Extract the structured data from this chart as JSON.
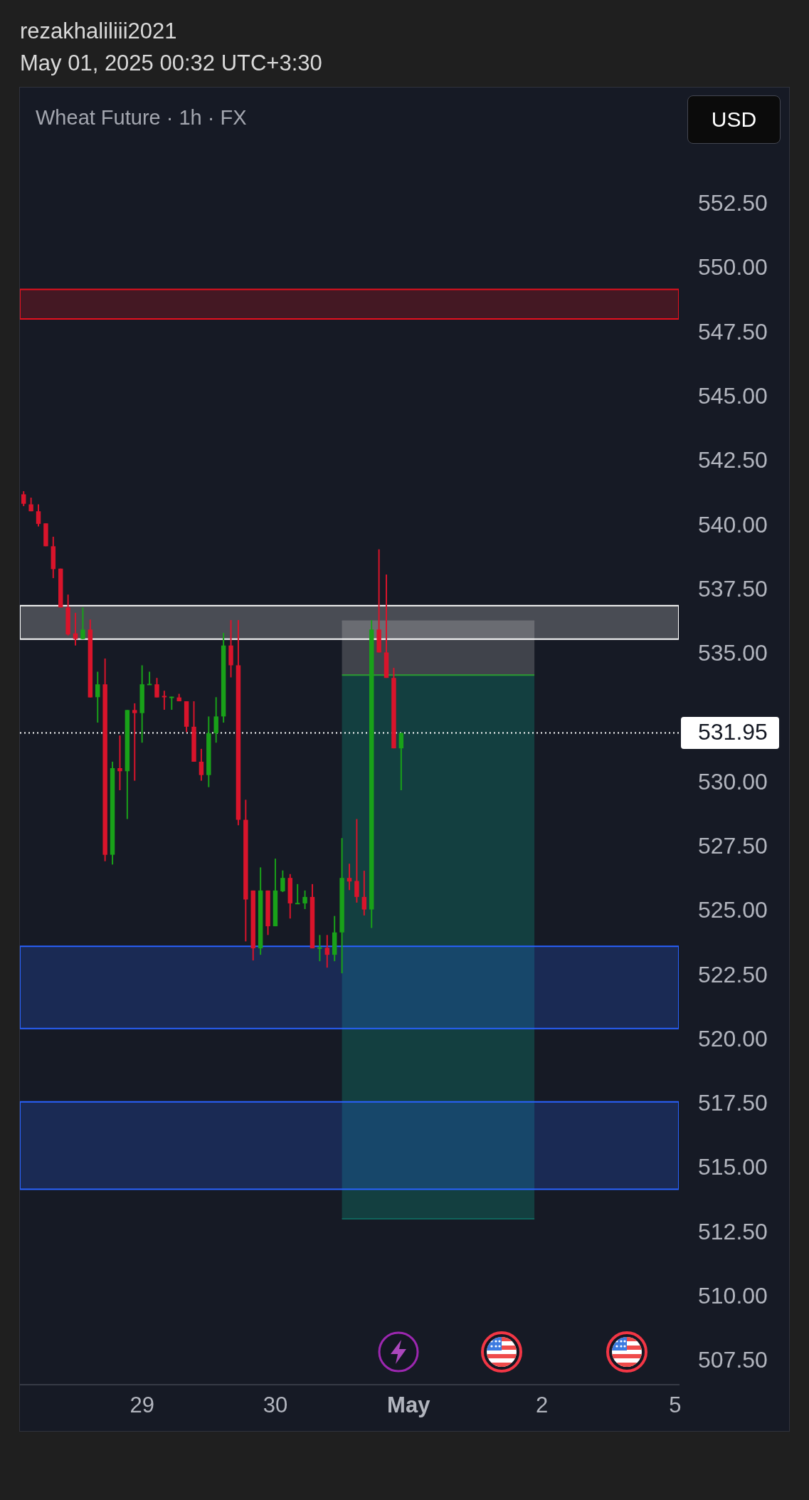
{
  "chart_data": {
    "type": "candlestick",
    "title": "Wheat Future · 1h · FX",
    "categories": [
      null,
      null,
      null,
      null,
      null,
      null,
      null,
      null,
      null,
      null,
      null,
      null,
      null,
      null,
      null,
      null,
      "29",
      null,
      null,
      null,
      null,
      null,
      null,
      null,
      null,
      null,
      null,
      null,
      null,
      null,
      null,
      null,
      null,
      null,
      "30",
      null,
      null,
      null,
      null,
      null,
      null,
      null,
      null,
      null,
      null,
      null,
      null,
      null,
      null,
      null,
      null,
      null,
      "May",
      null,
      null,
      null,
      null,
      null,
      null,
      null,
      null,
      null,
      null,
      null,
      null,
      null,
      null,
      null,
      null,
      null,
      "2",
      null,
      null,
      null,
      null,
      null,
      null,
      null,
      null,
      null,
      null,
      null,
      null,
      null,
      null,
      null,
      null,
      null,
      "5"
    ],
    "ohlc": [
      [
        541.23,
        541.35,
        540.77,
        540.86
      ],
      [
        540.84,
        541.1,
        540.57,
        540.57
      ],
      [
        540.57,
        540.84,
        539.98,
        540.08
      ],
      [
        540.1,
        540.1,
        539.21,
        539.21
      ],
      [
        539.21,
        539.58,
        537.97,
        538.32
      ],
      [
        538.34,
        538.34,
        536.83,
        536.83
      ],
      [
        536.83,
        537.33,
        535.74,
        535.78
      ],
      [
        535.82,
        536.62,
        535.35,
        535.6
      ],
      [
        535.6,
        536.83,
        535.6,
        535.97
      ],
      [
        535.97,
        536.36,
        533.33,
        533.33
      ],
      [
        533.34,
        534.33,
        532.35,
        533.84
      ],
      [
        533.84,
        534.84,
        526.96,
        527.21
      ],
      [
        527.21,
        530.83,
        526.83,
        530.58
      ],
      [
        530.58,
        531.85,
        529.72,
        530.46
      ],
      [
        530.46,
        532.84,
        528.6,
        532.84
      ],
      [
        532.84,
        533.1,
        530.09,
        532.72
      ],
      [
        532.72,
        534.58,
        531.57,
        533.84
      ],
      [
        533.84,
        534.33,
        533.84,
        533.86
      ],
      [
        533.84,
        534.09,
        533.33,
        533.33
      ],
      [
        533.39,
        533.59,
        532.85,
        533.35
      ],
      [
        533.34,
        533.36,
        532.85,
        533.36
      ],
      [
        533.33,
        533.47,
        533.18,
        533.18
      ],
      [
        533.18,
        533.18,
        531.98,
        532.19
      ],
      [
        532.19,
        533.18,
        530.83,
        530.83
      ],
      [
        530.83,
        531.33,
        530.09,
        530.31
      ],
      [
        530.31,
        532.59,
        529.84,
        531.94
      ],
      [
        531.94,
        533.34,
        531.57,
        532.59
      ],
      [
        532.59,
        535.84,
        532.35,
        535.35
      ],
      [
        535.35,
        536.34,
        534.11,
        534.58
      ],
      [
        534.58,
        536.34,
        528.36,
        528.57
      ],
      [
        528.57,
        529.35,
        523.84,
        525.47
      ],
      [
        525.82,
        525.82,
        523.1,
        523.57
      ],
      [
        523.57,
        526.72,
        523.32,
        525.82
      ],
      [
        525.82,
        525.82,
        524.09,
        524.43
      ],
      [
        524.43,
        527.06,
        524.43,
        525.82
      ],
      [
        525.79,
        526.6,
        525.76,
        526.31
      ],
      [
        526.31,
        526.46,
        524.73,
        525.32
      ],
      [
        525.32,
        526.07,
        525.32,
        525.34
      ],
      [
        525.32,
        525.82,
        525.1,
        525.57
      ],
      [
        525.57,
        526.07,
        523.57,
        523.57
      ],
      [
        523.59,
        524.09,
        523.07,
        523.61
      ],
      [
        523.59,
        524.09,
        522.82,
        523.32
      ],
      [
        523.32,
        524.83,
        523.07,
        524.19
      ],
      [
        524.19,
        527.86,
        522.6,
        526.31
      ],
      [
        526.31,
        526.86,
        525.84,
        526.17
      ],
      [
        526.19,
        528.6,
        525.35,
        525.57
      ],
      [
        525.57,
        526.59,
        524.85,
        525.08
      ],
      [
        525.08,
        536.34,
        524.36,
        535.97
      ],
      [
        535.97,
        539.09,
        535.08,
        535.08
      ],
      [
        535.08,
        538.11,
        534.09,
        534.09
      ],
      [
        534.09,
        534.48,
        531.35,
        531.35
      ],
      [
        531.35,
        531.95,
        529.72,
        531.95
      ],
      null,
      null,
      null,
      null,
      null,
      null,
      null,
      null,
      null,
      null,
      null,
      null,
      null,
      null,
      null,
      null,
      null,
      null,
      null,
      null,
      null,
      null,
      null,
      null,
      null,
      null,
      null,
      null,
      null,
      null,
      null,
      null,
      null,
      null,
      null,
      null,
      null
    ],
    "colors": [
      "#d9142b",
      "#d9142b",
      "#d9142b",
      "#d9142b",
      "#d9142b",
      "#d9142b",
      "#d9142b",
      "#d9142b",
      "#19a119",
      "#d9142b",
      "#19a119",
      "#d9142b",
      "#19a119",
      "#d9142b",
      "#19a119",
      "#d9142b",
      "#19a119",
      "#19a119",
      "#d9142b",
      "#d9142b",
      "#19a119",
      "#d9142b",
      "#d9142b",
      "#d9142b",
      "#d9142b",
      "#19a119",
      "#19a119",
      "#19a119",
      "#d9142b",
      "#d9142b",
      "#d9142b",
      "#d9142b",
      "#19a119",
      "#d9142b",
      "#19a119",
      "#19a119",
      "#d9142b",
      "#19a119",
      "#19a119",
      "#d9142b",
      "#19a119",
      "#d9142b",
      "#19a119",
      "#19a119",
      "#d9142b",
      "#d9142b",
      "#d9142b",
      "#19a119",
      "#d9142b",
      "#d9142b",
      "#d9142b",
      "#19a119",
      null,
      null,
      null,
      null,
      null,
      null,
      null,
      null,
      null,
      null,
      null,
      null,
      null,
      null,
      null,
      null,
      null,
      null,
      null,
      null,
      null,
      null,
      null,
      null,
      null,
      null,
      null,
      null,
      null,
      null,
      null,
      null,
      null,
      null,
      null,
      null,
      null
    ],
    "series": [
      {
        "type": "line",
        "color": "#10645b",
        "values": [
          null,
          null,
          null,
          null,
          null,
          null,
          null,
          null,
          null,
          null,
          null,
          null,
          null,
          null,
          null,
          null,
          null,
          null,
          null,
          null,
          null,
          null,
          null,
          null,
          null,
          null,
          null,
          null,
          null,
          null,
          null,
          null,
          null,
          null,
          null,
          null,
          null,
          null,
          null,
          null,
          null,
          null,
          null,
          513.05,
          513.05,
          513.05,
          513.05,
          513.05,
          513.05,
          513.05,
          513.05,
          513.05,
          513.05,
          513.05,
          513.05,
          513.05,
          513.05,
          513.05,
          513.05,
          513.05,
          513.05,
          513.05,
          513.05,
          513.05,
          513.05,
          513.05,
          513.05,
          513.05,
          513.05,
          513.05,
          null,
          null,
          null,
          null,
          null,
          null,
          null,
          null,
          null,
          null,
          null,
          null,
          null,
          null,
          null,
          null,
          null,
          null,
          null
        ],
        "lower": [
          null,
          null,
          null,
          null,
          null,
          null,
          null,
          null,
          null,
          null,
          null,
          null,
          null,
          null,
          null,
          null,
          null,
          null,
          null,
          null,
          null,
          null,
          null,
          null,
          null,
          null,
          null,
          null,
          null,
          null,
          null,
          null,
          null,
          null,
          null,
          null,
          null,
          null,
          null,
          null,
          null,
          null,
          null,
          513.05,
          513.05,
          513.05,
          513.05,
          513.05,
          513.05,
          513.05,
          513.05,
          513.05,
          513.05,
          513.05,
          513.05,
          513.05,
          513.05,
          513.05,
          513.05,
          513.05,
          513.05,
          513.05,
          513.05,
          513.05,
          513.05,
          513.05,
          513.05,
          513.05,
          513.05,
          513.05,
          null,
          null,
          null,
          null,
          null,
          null,
          null,
          null,
          null,
          null,
          null,
          null,
          null,
          null,
          null,
          null,
          null,
          null,
          null
        ],
        "upper": [
          null,
          null,
          null,
          null,
          null,
          null,
          null,
          null,
          null,
          null,
          null,
          null,
          null,
          null,
          null,
          null,
          null,
          null,
          null,
          null,
          null,
          null,
          null,
          null,
          null,
          null,
          null,
          null,
          null,
          null,
          null,
          null,
          null,
          null,
          null,
          null,
          null,
          null,
          null,
          null,
          null,
          null,
          null,
          534.2,
          534.2,
          534.2,
          534.2,
          534.2,
          534.2,
          534.2,
          534.2,
          534.2,
          534.2,
          534.2,
          534.2,
          534.2,
          534.2,
          534.2,
          534.2,
          534.2,
          534.2,
          534.2,
          534.2,
          534.2,
          534.2,
          534.2,
          534.2,
          534.2,
          534.2,
          534.2,
          null,
          null,
          null,
          null,
          null,
          null,
          null,
          null,
          null,
          null,
          null,
          null,
          null,
          null,
          null,
          null,
          null,
          null,
          null
        ]
      },
      {
        "type": "line",
        "color": "#6a6c72",
        "values": [
          null,
          null,
          null,
          null,
          null,
          null,
          null,
          null,
          null,
          null,
          null,
          null,
          null,
          null,
          null,
          null,
          null,
          null,
          null,
          null,
          null,
          null,
          null,
          null,
          null,
          null,
          null,
          null,
          null,
          null,
          null,
          null,
          null,
          null,
          null,
          null,
          null,
          null,
          null,
          null,
          null,
          null,
          null,
          536.3,
          536.3,
          536.3,
          536.3,
          536.3,
          536.3,
          536.3,
          536.3,
          536.3,
          536.3,
          536.3,
          536.3,
          536.3,
          536.3,
          536.3,
          536.3,
          536.3,
          536.3,
          536.3,
          536.3,
          536.3,
          536.3,
          536.3,
          536.3,
          536.3,
          536.3,
          536.3,
          null,
          null,
          null,
          null,
          null,
          null,
          null,
          null,
          null,
          null,
          null,
          null,
          null,
          null,
          null,
          null,
          null,
          null,
          null
        ],
        "lower": [
          null,
          null,
          null,
          null,
          null,
          null,
          null,
          null,
          null,
          null,
          null,
          null,
          null,
          null,
          null,
          null,
          null,
          null,
          null,
          null,
          null,
          null,
          null,
          null,
          null,
          null,
          null,
          null,
          null,
          null,
          null,
          null,
          null,
          null,
          null,
          null,
          null,
          null,
          null,
          null,
          null,
          null,
          null,
          534.2,
          534.2,
          534.2,
          534.2,
          534.2,
          534.2,
          534.2,
          534.2,
          534.2,
          534.2,
          534.2,
          534.2,
          534.2,
          534.2,
          534.2,
          534.2,
          534.2,
          534.2,
          534.2,
          534.2,
          534.2,
          534.2,
          534.2,
          534.2,
          534.2,
          534.2,
          534.2,
          null,
          null,
          null,
          null,
          null,
          null,
          null,
          null,
          null,
          null,
          null,
          null,
          null,
          null,
          null,
          null,
          null,
          null,
          null
        ],
        "upper": [
          null,
          null,
          null,
          null,
          null,
          null,
          null,
          null,
          null,
          null,
          null,
          null,
          null,
          null,
          null,
          null,
          null,
          null,
          null,
          null,
          null,
          null,
          null,
          null,
          null,
          null,
          null,
          null,
          null,
          null,
          null,
          null,
          null,
          null,
          null,
          null,
          null,
          null,
          null,
          null,
          null,
          null,
          null,
          536.3,
          536.3,
          536.3,
          536.3,
          536.3,
          536.3,
          536.3,
          536.3,
          536.3,
          536.3,
          536.3,
          536.3,
          536.3,
          536.3,
          536.3,
          536.3,
          536.3,
          536.3,
          536.3,
          536.3,
          536.3,
          536.3,
          536.3,
          536.3,
          536.3,
          536.3,
          536.3,
          null,
          null,
          null,
          null,
          null,
          null,
          null,
          null,
          null,
          null,
          null,
          null,
          null,
          null,
          null,
          null,
          null,
          null,
          null
        ]
      },
      {
        "type": "line",
        "color": "#2b9b32",
        "values": [
          null,
          null,
          null,
          null,
          null,
          null,
          null,
          null,
          null,
          null,
          null,
          null,
          null,
          null,
          null,
          null,
          null,
          null,
          null,
          null,
          null,
          null,
          null,
          null,
          null,
          null,
          null,
          null,
          null,
          null,
          null,
          null,
          null,
          null,
          null,
          null,
          null,
          null,
          null,
          null,
          null,
          null,
          null,
          534.2,
          534.2,
          534.2,
          534.2,
          534.2,
          534.2,
          534.2,
          534.2,
          534.2,
          534.2,
          534.2,
          534.2,
          534.2,
          534.2,
          534.2,
          534.2,
          534.2,
          534.2,
          534.2,
          534.2,
          534.2,
          534.2,
          534.2,
          534.2,
          534.2,
          534.2,
          534.2,
          null,
          null,
          null,
          null,
          null,
          null,
          null,
          null,
          null,
          null,
          null,
          null,
          null,
          null,
          null,
          null,
          null,
          null,
          null
        ]
      }
    ],
    "ylim": [
      506.6,
      557.05
    ],
    "yticks": [
      {
        "value": 507.5,
        "label": "507.50"
      },
      {
        "value": 510,
        "label": "510.00"
      },
      {
        "value": 512.5,
        "label": "512.50"
      },
      {
        "value": 515,
        "label": "515.00"
      },
      {
        "value": 517.5,
        "label": "517.50"
      },
      {
        "value": 520,
        "label": "520.00"
      },
      {
        "value": 522.5,
        "label": "522.50"
      },
      {
        "value": 525,
        "label": "525.00"
      },
      {
        "value": 527.5,
        "label": "527.50"
      },
      {
        "value": 530,
        "label": "530.00"
      },
      {
        "value": 535,
        "label": "535.00"
      },
      {
        "value": 537.5,
        "label": "537.50"
      },
      {
        "value": 540,
        "label": "540.00"
      },
      {
        "value": 542.5,
        "label": "542.50"
      },
      {
        "value": 545,
        "label": "545.00"
      },
      {
        "value": 547.5,
        "label": "547.50"
      },
      {
        "value": 550,
        "label": "550.00"
      },
      {
        "value": 552.5,
        "label": "552.50"
      }
    ],
    "grid": false,
    "bands": [
      {
        "axis": "y",
        "from": 548.05,
        "to": 549.2,
        "color": "#e6101e"
      },
      {
        "axis": "y",
        "from": 535.6,
        "to": 536.9,
        "color": "#ffffff"
      },
      {
        "axis": "y",
        "from": 520.45,
        "to": 523.65,
        "color": "#2962ff"
      },
      {
        "axis": "y",
        "from": 514.2,
        "to": 517.6,
        "color": "#2962ff"
      }
    ],
    "ref_lines": [
      {
        "axis": "y",
        "value": 531.95,
        "label": "531.95",
        "color": "#ffffff",
        "line_style": "dotted"
      }
    ],
    "annotations": [
      "rezakhaliliii2021",
      "May 01, 2025 00:32 UTC+3:30",
      "USD"
    ]
  }
}
